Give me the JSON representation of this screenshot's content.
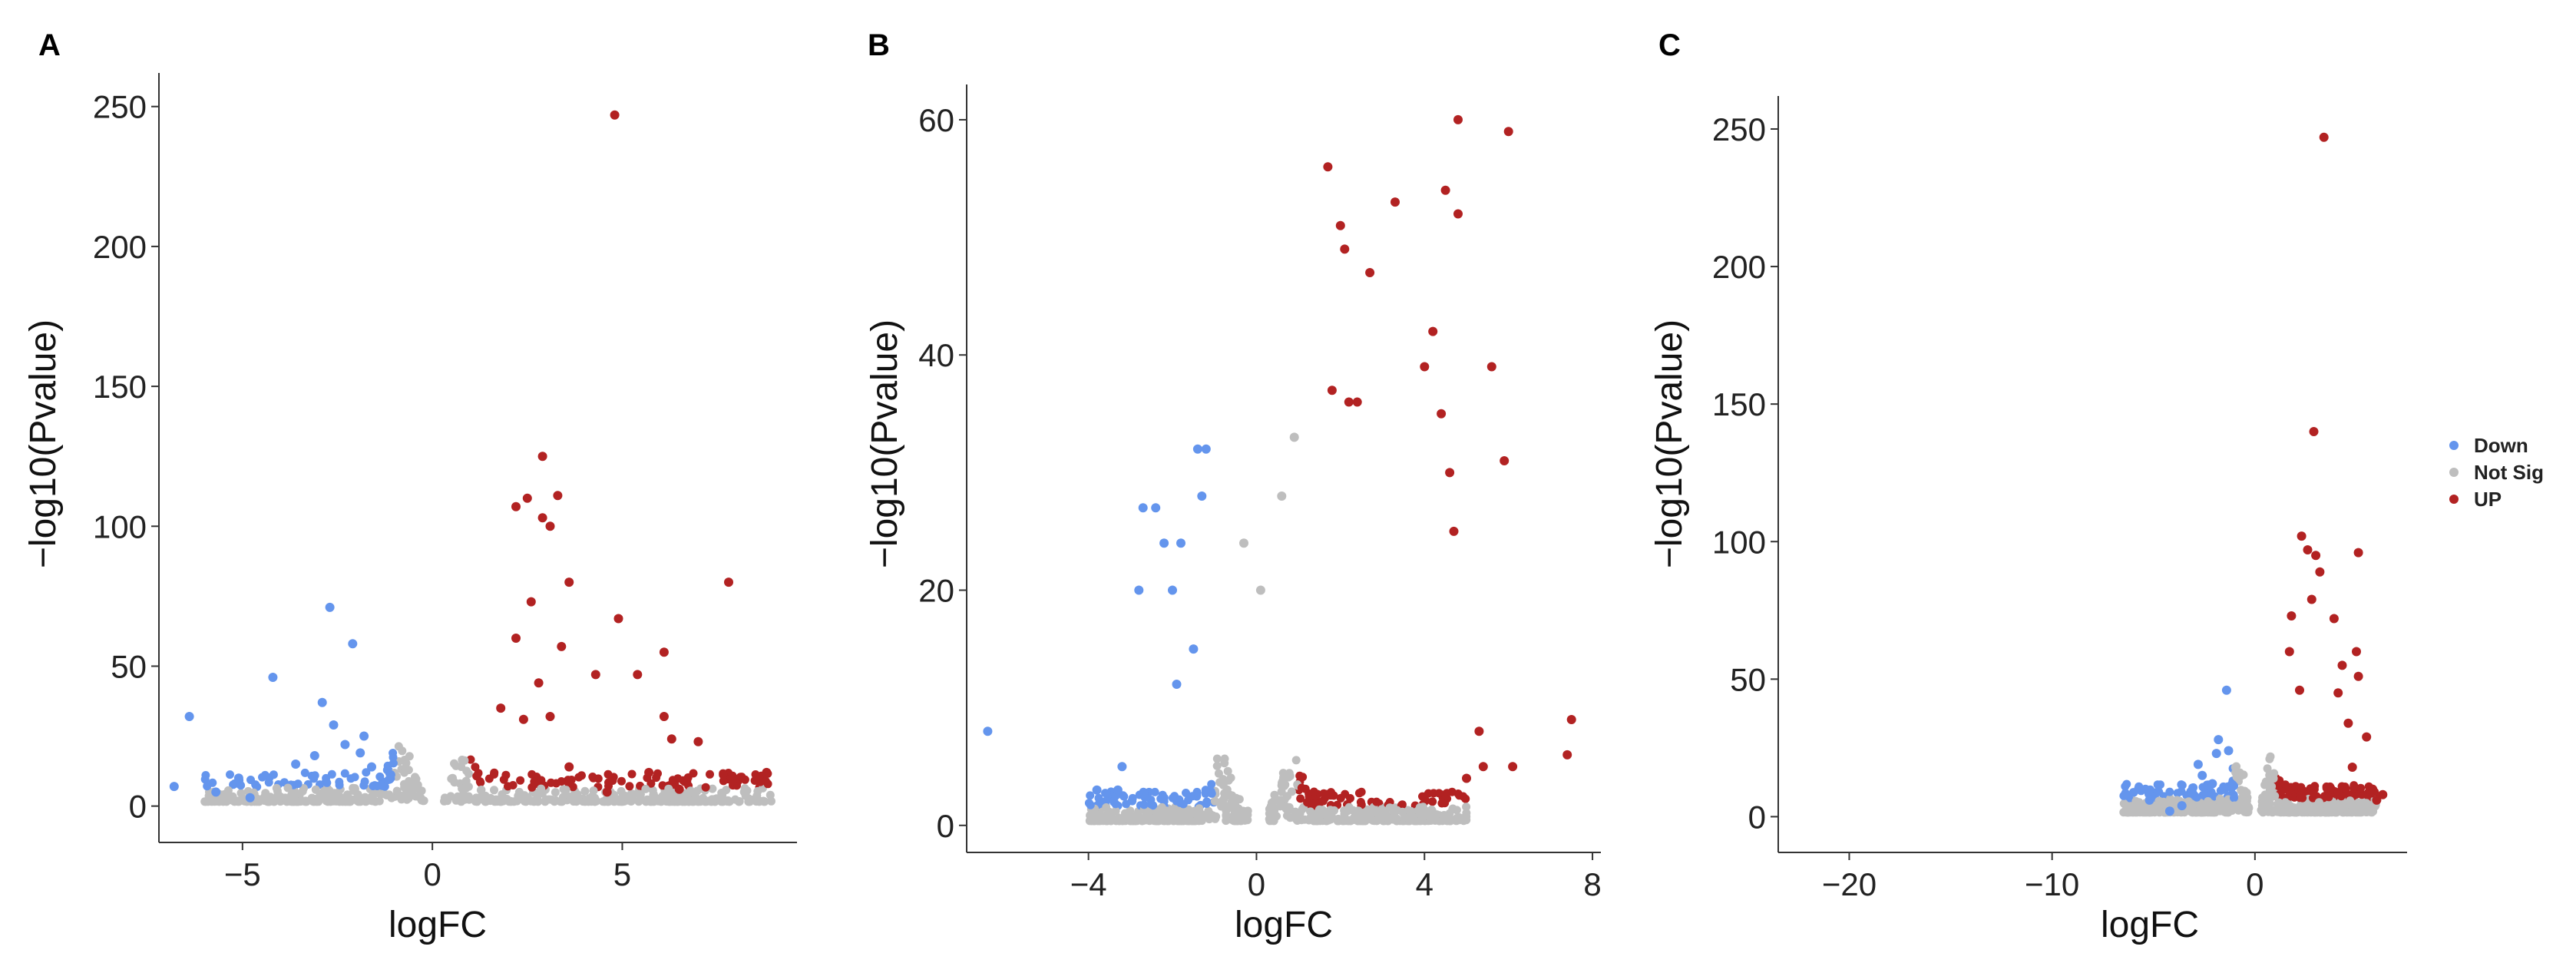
{
  "colors": {
    "Down": "#6495ED",
    "Not Sig": "#BEBEBE",
    "UP": "#B22222"
  },
  "legend": {
    "entries": [
      "Down",
      "Not Sig",
      "UP"
    ]
  },
  "chart_data": [
    {
      "type": "scatter",
      "panel": "A",
      "xlabel": "logFC",
      "ylabel": "−log10(Pvalue)",
      "xlim": [
        -7.2,
        9.6
      ],
      "ylim": [
        -13,
        262
      ],
      "xticks": [
        -5,
        0,
        5
      ],
      "yticks": [
        0,
        50,
        100,
        150,
        200,
        250
      ],
      "cloud": {
        "left": [
          -6,
          -0.2
        ],
        "right": [
          0.3,
          9
        ],
        "fc_threshold": 1
      },
      "series": [
        {
          "name": "Down",
          "points": [
            [
              -6.8,
              7
            ],
            [
              -6.4,
              32
            ],
            [
              -5.7,
              5
            ],
            [
              -5.1,
              10
            ],
            [
              -4.8,
              3
            ],
            [
              -4.2,
              46
            ],
            [
              -3.6,
              15
            ],
            [
              -3.1,
              18
            ],
            [
              -2.9,
              37
            ],
            [
              -2.7,
              71
            ],
            [
              -2.6,
              29
            ],
            [
              -2.3,
              22
            ],
            [
              -2.1,
              58
            ],
            [
              -1.9,
              19
            ],
            [
              -1.8,
              25
            ],
            [
              -1.6,
              14
            ]
          ]
        },
        {
          "name": "UP",
          "points": [
            [
              4.8,
              247
            ],
            [
              2.9,
              125
            ],
            [
              2.2,
              107
            ],
            [
              2.5,
              110
            ],
            [
              3.3,
              111
            ],
            [
              2.9,
              103
            ],
            [
              3.1,
              100
            ],
            [
              3.6,
              80
            ],
            [
              7.8,
              80
            ],
            [
              2.6,
              73
            ],
            [
              4.9,
              67
            ],
            [
              2.2,
              60
            ],
            [
              3.4,
              57
            ],
            [
              6.1,
              55
            ],
            [
              4.3,
              47
            ],
            [
              5.4,
              47
            ],
            [
              2.8,
              44
            ],
            [
              3.1,
              32
            ],
            [
              6.1,
              32
            ],
            [
              6.3,
              24
            ],
            [
              7,
              23
            ],
            [
              3.6,
              14
            ],
            [
              5.7,
              12
            ],
            [
              7.9,
              9
            ],
            [
              8.8,
              12
            ],
            [
              2.4,
              31
            ],
            [
              1.8,
              35
            ],
            [
              6.5,
              6
            ],
            [
              4.6,
              5
            ]
          ]
        }
      ]
    },
    {
      "type": "scatter",
      "panel": "B",
      "xlabel": "logFC",
      "ylabel": "−log10(Pvalue)",
      "xlim": [
        -6.9,
        8.2
      ],
      "ylim": [
        -2.3,
        63
      ],
      "xticks": [
        -4,
        0,
        4,
        8
      ],
      "yticks": [
        0,
        20,
        40,
        60
      ],
      "cloud": {
        "left": [
          -4,
          -0.2
        ],
        "right": [
          0.3,
          5
        ],
        "fc_threshold": 1
      },
      "series": [
        {
          "name": "Down",
          "points": [
            [
              -6.4,
              8
            ],
            [
              -3.8,
              3
            ],
            [
              -3.3,
              3
            ],
            [
              -3.2,
              5
            ],
            [
              -2.8,
              20
            ],
            [
              -2.7,
              27
            ],
            [
              -2.4,
              27
            ],
            [
              -2.2,
              24
            ],
            [
              -2,
              20
            ],
            [
              -1.8,
              24
            ],
            [
              -1.4,
              32
            ],
            [
              -1.3,
              28
            ],
            [
              -1.2,
              32
            ],
            [
              -1.5,
              15
            ],
            [
              -1.9,
              12
            ]
          ]
        },
        {
          "name": "Not Sig",
          "points": [
            [
              0.9,
              33
            ],
            [
              0.6,
              28
            ],
            [
              -0.3,
              24
            ],
            [
              0.1,
              20
            ]
          ]
        },
        {
          "name": "UP",
          "points": [
            [
              1.7,
              56
            ],
            [
              4.8,
              60
            ],
            [
              6,
              59
            ],
            [
              3.3,
              53
            ],
            [
              4.5,
              54
            ],
            [
              4.8,
              52
            ],
            [
              2,
              51
            ],
            [
              2.1,
              49
            ],
            [
              2.7,
              47
            ],
            [
              4.2,
              42
            ],
            [
              4,
              39
            ],
            [
              5.6,
              39
            ],
            [
              1.8,
              37
            ],
            [
              2.2,
              36
            ],
            [
              4.4,
              35
            ],
            [
              2.4,
              36
            ],
            [
              4.6,
              30
            ],
            [
              5.9,
              31
            ],
            [
              4.7,
              25
            ],
            [
              7.5,
              9
            ],
            [
              7.4,
              6
            ],
            [
              5.3,
              8
            ],
            [
              5.4,
              5
            ],
            [
              6.1,
              5
            ],
            [
              5,
              4
            ]
          ]
        }
      ]
    },
    {
      "type": "scatter",
      "panel": "C",
      "xlabel": "logFC",
      "ylabel": "−log10(Pvalue)",
      "xlim": [
        -23.5,
        7.5
      ],
      "ylim": [
        -13,
        262
      ],
      "xticks": [
        -20,
        -10,
        0
      ],
      "yticks": [
        0,
        50,
        100,
        150,
        200,
        250
      ],
      "cloud": {
        "left": [
          -6.5,
          -0.3
        ],
        "right": [
          0.3,
          6
        ],
        "fc_threshold": 1
      },
      "series": [
        {
          "name": "Down",
          "points": [
            [
              -4.2,
              2
            ],
            [
              -5.2,
              6
            ],
            [
              -3.6,
              4
            ],
            [
              -3.1,
              9
            ],
            [
              -2.8,
              19
            ],
            [
              -2.6,
              15
            ],
            [
              -2.1,
              12
            ],
            [
              -1.9,
              23
            ],
            [
              -1.4,
              46
            ],
            [
              -1.3,
              24
            ],
            [
              -1.8,
              28
            ]
          ]
        },
        {
          "name": "UP",
          "points": [
            [
              3.4,
              247
            ],
            [
              2.9,
              140
            ],
            [
              2.3,
              102
            ],
            [
              2.6,
              97
            ],
            [
              3,
              95
            ],
            [
              5.1,
              96
            ],
            [
              3.2,
              89
            ],
            [
              2.8,
              79
            ],
            [
              3.9,
              72
            ],
            [
              1.8,
              73
            ],
            [
              1.7,
              60
            ],
            [
              4.3,
              55
            ],
            [
              5,
              60
            ],
            [
              5.1,
              51
            ],
            [
              4.1,
              45
            ],
            [
              4.6,
              34
            ],
            [
              2.2,
              46
            ],
            [
              5.5,
              29
            ],
            [
              4.8,
              18
            ],
            [
              6.3,
              8
            ],
            [
              5.8,
              10
            ],
            [
              6,
              6
            ]
          ]
        }
      ]
    }
  ]
}
